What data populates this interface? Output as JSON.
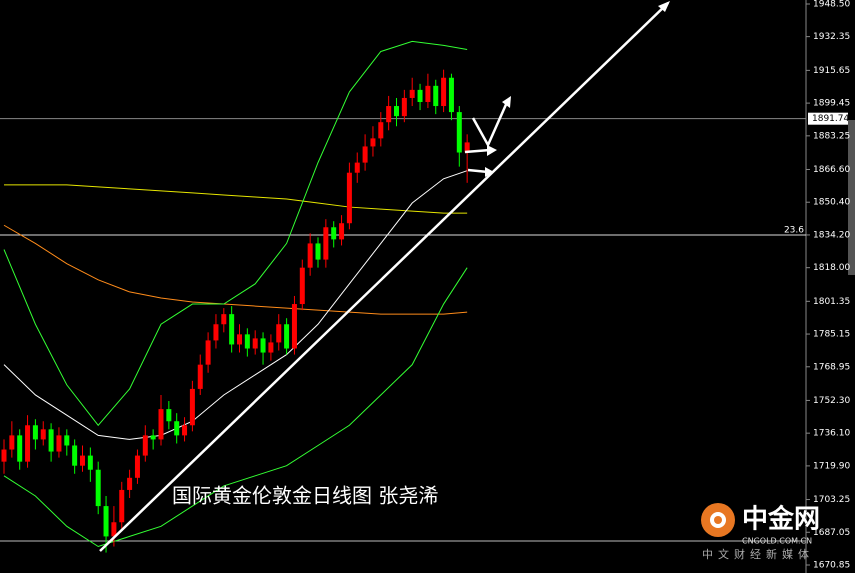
{
  "chart_data": {
    "type": "candlestick",
    "ylim": [
      1670.85,
      1948.5
    ],
    "yticks": [
      {
        "value": 1948.5,
        "label": "1948.50"
      },
      1932.35,
      1915.65,
      1899.45,
      1883.25,
      {
        "value": 1866.6,
        "label": "1866.60"
      },
      {
        "value": 1850.4,
        "label": "1850.40"
      },
      {
        "value": 1834.2,
        "label": "1834.20"
      },
      {
        "value": 1818,
        "label": "1818.00"
      },
      1801.35,
      1785.15,
      1768.95,
      {
        "value": 1752.3,
        "label": "1752.30"
      },
      {
        "value": 1736.1,
        "label": "1736.10"
      },
      {
        "value": 1719.9,
        "label": "1719.90"
      },
      1703.25,
      1687.05,
      1670.85
    ],
    "up_color": "#ff0000",
    "down_color": "#00ff00",
    "open": [
      1722,
      1728,
      1735,
      1722,
      1740,
      1733,
      1738,
      1727,
      1735,
      1730,
      1720,
      1725,
      1718,
      1700,
      1685,
      1692,
      1708,
      1714,
      1725,
      1735,
      1733,
      1748,
      1742,
      1735,
      1740,
      1758,
      1770,
      1782,
      1790,
      1795,
      1780,
      1785,
      1778,
      1783,
      1776,
      1781,
      1790,
      1778,
      1800,
      1818,
      1830,
      1822,
      1838,
      1832,
      1840,
      1865,
      1870,
      1878,
      1882,
      1890,
      1898,
      1893,
      1902,
      1906,
      1900,
      1908,
      1898,
      1912,
      1895,
      1875
    ],
    "high": [
      1733,
      1742,
      1738,
      1745,
      1743,
      1742,
      1741,
      1739,
      1738,
      1733,
      1730,
      1729,
      1722,
      1705,
      1700,
      1712,
      1718,
      1728,
      1740,
      1738,
      1755,
      1752,
      1746,
      1744,
      1762,
      1775,
      1786,
      1795,
      1798,
      1799,
      1790,
      1788,
      1787,
      1786,
      1785,
      1795,
      1793,
      1804,
      1822,
      1835,
      1833,
      1842,
      1841,
      1844,
      1870,
      1875,
      1884,
      1888,
      1895,
      1903,
      1902,
      1906,
      1912,
      1909,
      1914,
      1911,
      1916,
      1914,
      1898,
      1884
    ],
    "low": [
      1716,
      1724,
      1718,
      1719,
      1728,
      1730,
      1722,
      1724,
      1725,
      1716,
      1717,
      1712,
      1696,
      1677,
      1680,
      1688,
      1704,
      1711,
      1722,
      1728,
      1730,
      1738,
      1731,
      1732,
      1737,
      1755,
      1766,
      1778,
      1786,
      1776,
      1776,
      1774,
      1775,
      1770,
      1772,
      1777,
      1775,
      1775,
      1797,
      1814,
      1818,
      1818,
      1828,
      1829,
      1837,
      1860,
      1866,
      1873,
      1878,
      1886,
      1888,
      1890,
      1898,
      1896,
      1897,
      1894,
      1895,
      1891,
      1868,
      1860
    ],
    "close": [
      1728,
      1735,
      1722,
      1740,
      1733,
      1738,
      1727,
      1735,
      1730,
      1720,
      1725,
      1718,
      1700,
      1685,
      1692,
      1708,
      1714,
      1725,
      1735,
      1733,
      1748,
      1742,
      1735,
      1740,
      1758,
      1770,
      1782,
      1790,
      1795,
      1780,
      1785,
      1778,
      1783,
      1776,
      1781,
      1790,
      1778,
      1800,
      1818,
      1830,
      1822,
      1838,
      1832,
      1840,
      1865,
      1870,
      1878,
      1882,
      1890,
      1898,
      1893,
      1902,
      1906,
      1900,
      1908,
      1898,
      1912,
      1895,
      1875,
      1880
    ],
    "indicators": [
      {
        "color": "#e6e600",
        "x": [
          0,
          4,
          8,
          12,
          16,
          20,
          24,
          28,
          32,
          36,
          40,
          44,
          48,
          52,
          56,
          59
        ],
        "values": [
          1859,
          1859,
          1859,
          1858,
          1857,
          1856,
          1855,
          1854,
          1853,
          1852,
          1850,
          1848,
          1847,
          1846,
          1845,
          1845
        ]
      },
      {
        "color": "#ff8c1a",
        "x": [
          0,
          4,
          8,
          12,
          16,
          20,
          24,
          28,
          32,
          36,
          40,
          44,
          48,
          52,
          56,
          59
        ],
        "values": [
          1839,
          1830,
          1820,
          1812,
          1806,
          1803,
          1801,
          1800,
          1799,
          1798,
          1797,
          1796,
          1795,
          1795,
          1795,
          1796
        ]
      },
      {
        "color": "#33ff33",
        "x": [
          0,
          4,
          8,
          12,
          16,
          20,
          24,
          28,
          32,
          36,
          40,
          44,
          48,
          52,
          56,
          59
        ],
        "values": [
          1827,
          1790,
          1760,
          1740,
          1758,
          1790,
          1800,
          1800,
          1810,
          1830,
          1870,
          1905,
          1925,
          1930,
          1928,
          1926
        ]
      },
      {
        "color": "#ffffff",
        "x": [
          0,
          4,
          8,
          12,
          16,
          20,
          24,
          28,
          32,
          36,
          40,
          44,
          48,
          52,
          56,
          59
        ],
        "values": [
          1770,
          1755,
          1745,
          1735,
          1733,
          1735,
          1742,
          1755,
          1765,
          1775,
          1790,
          1810,
          1830,
          1850,
          1862,
          1866
        ]
      },
      {
        "color": "#33ff33",
        "x": [
          0,
          4,
          8,
          12,
          16,
          20,
          24,
          28,
          32,
          36,
          40,
          44,
          48,
          52,
          56,
          59
        ],
        "values": [
          1715,
          1705,
          1690,
          1680,
          1685,
          1690,
          1700,
          1710,
          1715,
          1720,
          1730,
          1740,
          1755,
          1770,
          1800,
          1818
        ]
      }
    ],
    "current_price": 1891.74,
    "fib_line": {
      "level": 23.6,
      "price": 1834.2
    },
    "caption": "国际黄金伦敦金日线图 张尧浠"
  },
  "logo": {
    "name": "中金网",
    "domain": "CNGOLD.COM.CN",
    "slogan": "中文财经新媒体"
  }
}
